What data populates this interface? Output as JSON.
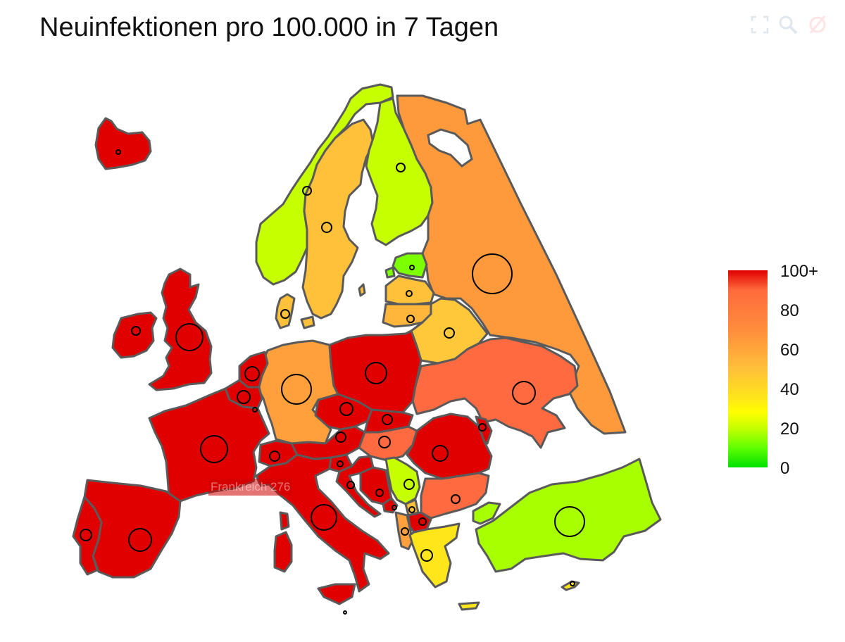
{
  "title": "Neuinfektionen pro 100.000 in 7 Tagen",
  "toolbar": {
    "icons": [
      "autoscale-icon",
      "zoom-icon",
      "reset-icon"
    ]
  },
  "tooltip": {
    "text": "Frankreich 276"
  },
  "legend": {
    "ticks": [
      "100+",
      "80",
      "60",
      "40",
      "20",
      "0"
    ],
    "colors": {
      "high": "#e00000",
      "mid_high": "#ff8c3c",
      "mid": "#ffc03a",
      "low": "#c6ff00",
      "zero": "#00e000"
    }
  },
  "countries": [
    {
      "id": "iceland",
      "color": "#e00000"
    },
    {
      "id": "ireland",
      "color": "#e00000"
    },
    {
      "id": "uk",
      "color": "#e00000"
    },
    {
      "id": "norway",
      "color": "#c6ff00"
    },
    {
      "id": "sweden",
      "color": "#ffc03a"
    },
    {
      "id": "finland",
      "color": "#c6ff00"
    },
    {
      "id": "russia",
      "color": "#ff9a3c"
    },
    {
      "id": "estonia",
      "color": "#7cff00"
    },
    {
      "id": "latvia",
      "color": "#ffc03a"
    },
    {
      "id": "lithuania",
      "color": "#ffb63a"
    },
    {
      "id": "belarus",
      "color": "#ffc83a"
    },
    {
      "id": "ukraine",
      "color": "#ff6a40"
    },
    {
      "id": "denmark",
      "color": "#ffc03a"
    },
    {
      "id": "germany",
      "color": "#ffa03c"
    },
    {
      "id": "poland",
      "color": "#e00000"
    },
    {
      "id": "netherlands",
      "color": "#e00000"
    },
    {
      "id": "belgium",
      "color": "#e00000"
    },
    {
      "id": "france",
      "color": "#e00000"
    },
    {
      "id": "spain",
      "color": "#e00000"
    },
    {
      "id": "portugal",
      "color": "#e00000"
    },
    {
      "id": "switzerland",
      "color": "#e00000"
    },
    {
      "id": "italy",
      "color": "#e00000"
    },
    {
      "id": "austria",
      "color": "#e00000"
    },
    {
      "id": "czechia",
      "color": "#e00000"
    },
    {
      "id": "slovakia",
      "color": "#e00000"
    },
    {
      "id": "hungary",
      "color": "#ff6a40"
    },
    {
      "id": "romania",
      "color": "#e00000"
    },
    {
      "id": "moldova",
      "color": "#e00000"
    },
    {
      "id": "slovenia",
      "color": "#e00000"
    },
    {
      "id": "croatia",
      "color": "#e00000"
    },
    {
      "id": "bosnia",
      "color": "#e00000"
    },
    {
      "id": "serbia",
      "color": "#c6ff00"
    },
    {
      "id": "montenegro",
      "color": "#e00000"
    },
    {
      "id": "kosovo",
      "color": "#ffc03a"
    },
    {
      "id": "albania",
      "color": "#ffa03c"
    },
    {
      "id": "north-macedonia",
      "color": "#e00000"
    },
    {
      "id": "bulgaria",
      "color": "#ff6a40"
    },
    {
      "id": "greece",
      "color": "#ffe61a"
    },
    {
      "id": "turkey",
      "color": "#a8ff00"
    },
    {
      "id": "turkey-europe",
      "color": "#a8ff00"
    },
    {
      "id": "cyprus",
      "color": "#ffe61a"
    }
  ]
}
